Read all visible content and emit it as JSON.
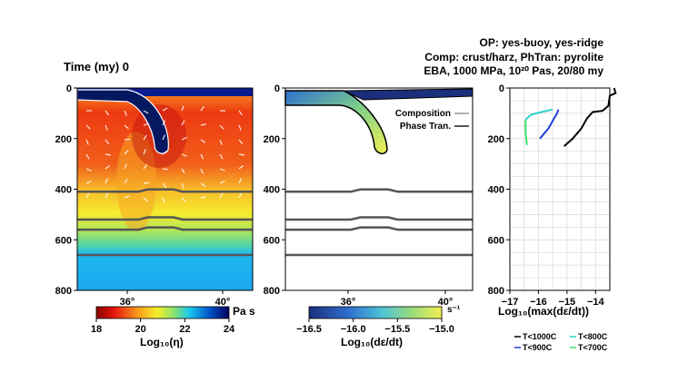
{
  "header": {
    "time_label": "Time (my) 0",
    "info_lines": [
      "OP: yes-buoy, yes-ridge",
      "Comp: crust/harz,  PhTran: pyrolite",
      "EBA, 1000 MPa, 10²⁰ Pas, 20/80 my"
    ]
  },
  "chart_data": [
    {
      "type": "heatmap",
      "name": "viscosity",
      "ylim": [
        0,
        800
      ],
      "y_ticks": [
        "0",
        "200",
        "400",
        "600",
        "800"
      ],
      "x_ticks": [
        "36°",
        "40°"
      ],
      "colorbar": {
        "ticks": [
          "18",
          "20",
          "22",
          "24"
        ],
        "range": [
          18,
          24
        ],
        "unit": "Pa s",
        "label": "Log₁₀(η)",
        "colors": [
          "#8b0000",
          "#e8180e",
          "#f9a01b",
          "#f5ef2a",
          "#8fe36a",
          "#1ac9ef",
          "#0050c8",
          "#00005a"
        ]
      },
      "phase_boundaries_km": [
        410,
        520,
        560,
        660
      ]
    },
    {
      "type": "heatmap",
      "name": "strain-rate",
      "ylim": [
        0,
        800
      ],
      "y_ticks": [
        "0",
        "200",
        "400",
        "600",
        "800"
      ],
      "x_ticks": [
        "36°",
        "40°"
      ],
      "legend": [
        "Composition",
        "Phase Tran."
      ],
      "colorbar": {
        "ticks": [
          "-16.5",
          "-16.0",
          "-15.5",
          "-15.0"
        ],
        "range": [
          -16.5,
          -15.0
        ],
        "unit": "s⁻¹",
        "label": "Log₁₀(dε/dt)",
        "colors": [
          "#1b2f7c",
          "#2f6fd0",
          "#4ec3d6",
          "#9bdc7a",
          "#f2ef52"
        ]
      },
      "phase_boundaries_km": [
        410,
        520,
        560,
        660
      ]
    },
    {
      "type": "line",
      "name": "strain-rate-profiles",
      "xlim": [
        -17,
        -13.5
      ],
      "ylim": [
        0,
        800
      ],
      "x_ticks": [
        "-17",
        "-16",
        "-15",
        "-14"
      ],
      "y_ticks": [
        "0",
        "200",
        "400",
        "600",
        "800"
      ],
      "xlabel": "Log₁₀(max(dε/dt))",
      "series": [
        {
          "name": "T<1000C",
          "color": "#000000",
          "x": [
            -13.35,
            -13.3,
            -13.5,
            -13.55,
            -13.75,
            -14.1,
            -14.3,
            -14.5,
            -14.8,
            -15.1
          ],
          "y": [
            0,
            20,
            30,
            70,
            90,
            95,
            120,
            160,
            200,
            230
          ]
        },
        {
          "name": "T<900C",
          "color": "#1f3fd8",
          "x": [
            -15.3,
            -15.35,
            -15.45,
            -15.55,
            -15.65,
            -15.8,
            -15.95
          ],
          "y": [
            85,
            100,
            120,
            140,
            160,
            180,
            200
          ]
        },
        {
          "name": "T<800C",
          "color": "#28d2c8",
          "x": [
            -16.45,
            -16.25,
            -15.9,
            -15.5
          ],
          "y": [
            125,
            105,
            95,
            85
          ]
        },
        {
          "name": "T<700C",
          "color": "#3fdf6f",
          "x": [
            -16.45,
            -16.45,
            -16.4
          ],
          "y": [
            125,
            180,
            225
          ]
        }
      ]
    }
  ]
}
